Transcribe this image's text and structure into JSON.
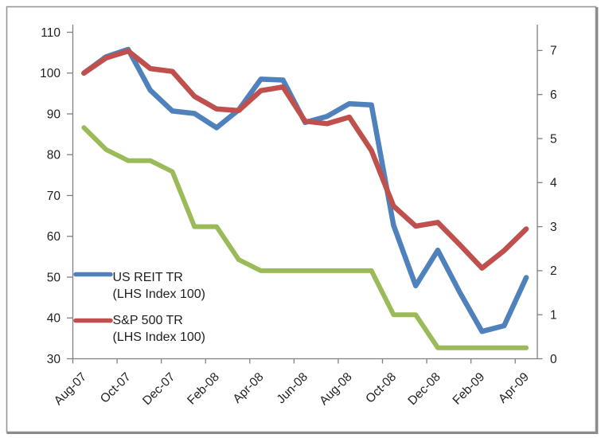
{
  "frame": {
    "background": "#ffffff",
    "border_color": "#979797",
    "shadow_color": "#8a8a8a"
  },
  "chart_data": {
    "type": "line",
    "title": "",
    "grid": "off",
    "axis_color": "#808080",
    "text_color": "#1f1f1f",
    "categories": [
      "Aug-07",
      "Sep-07",
      "Oct-07",
      "Nov-07",
      "Dec-07",
      "Jan-08",
      "Feb-08",
      "Mar-08",
      "Apr-08",
      "May-08",
      "Jun-08",
      "Jul-08",
      "Aug-08",
      "Sep-08",
      "Oct-08",
      "Nov-08",
      "Dec-08",
      "Jan-09",
      "Feb-09",
      "Mar-09",
      "Apr-09"
    ],
    "x_axis": {
      "tick_labels": [
        "Aug-07",
        "Oct-07",
        "Dec-07",
        "Feb-08",
        "Apr-08",
        "Jun-08",
        "Aug-08",
        "Oct-08",
        "Dec-08",
        "Feb-09",
        "Apr-09"
      ],
      "label_every_n_categories": 2,
      "label_rotation_deg": -45
    },
    "left_axis": {
      "min": 30,
      "max": 110,
      "major_unit": 10,
      "tick_labels": [
        "110",
        "100",
        "90",
        "80",
        "70",
        "60",
        "50",
        "40",
        "30"
      ]
    },
    "right_axis": {
      "min": 0,
      "max": 7,
      "major_unit": 1,
      "tick_labels": [
        "7",
        "6",
        "5",
        "4",
        "3",
        "2",
        "1",
        "0"
      ]
    },
    "legend": {
      "position": "inside-left-middle",
      "entries": [
        {
          "lines": [
            "US REIT TR",
            "(LHS Index 100)"
          ]
        },
        {
          "lines": [
            "S&P 500 TR",
            "(LHS Index 100)"
          ]
        }
      ]
    },
    "series": [
      {
        "name": "US REIT TR (LHS Index 100)",
        "axis": "left",
        "color": "#4F81BD",
        "stroke_width": 6.5,
        "in_legend": true,
        "values": [
          100,
          104,
          105.8,
          95.8,
          90.7,
          90.1,
          86.6,
          91,
          98.5,
          98.3,
          87.9,
          89.4,
          92.5,
          92.2,
          62.7,
          47.9,
          56.6,
          46.2,
          36.7,
          38.1,
          49.9
        ]
      },
      {
        "name": "S&P 500 TR (LHS Index 100)",
        "axis": "left",
        "color": "#C0504D",
        "stroke_width": 6.5,
        "in_legend": true,
        "values": [
          100,
          103.7,
          105.4,
          101.1,
          100.4,
          94.3,
          91.2,
          90.8,
          95.7,
          96.6,
          88.2,
          87.6,
          89.2,
          81,
          67.4,
          62.5,
          63.4,
          57.9,
          52.2,
          56.5,
          61.8
        ]
      },
      {
        "name": "",
        "axis": "right",
        "color": "#9BBB59",
        "stroke_width": 6,
        "in_legend": false,
        "values": [
          5.25,
          4.75,
          4.5,
          4.5,
          4.25,
          3,
          3,
          2.25,
          2,
          2,
          2,
          2,
          2,
          2,
          1,
          1,
          0.25,
          0.25,
          0.25,
          0.25,
          0.25
        ]
      }
    ]
  }
}
